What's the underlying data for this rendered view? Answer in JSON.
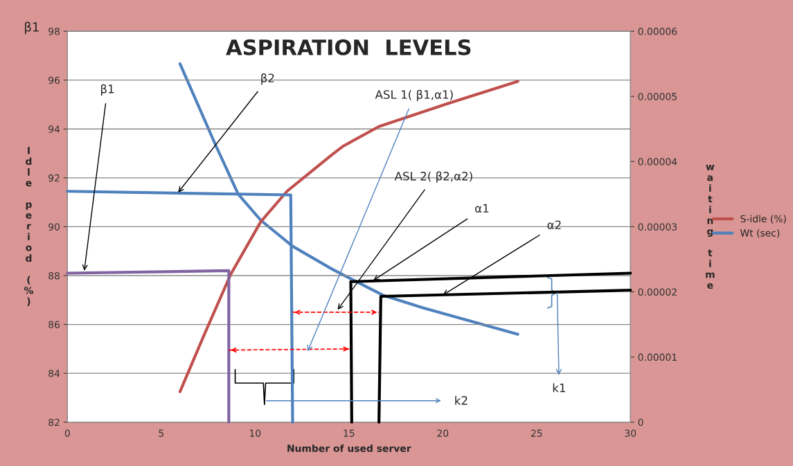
{
  "chart_data": {
    "type": "line",
    "title": "ASPIRATION  LEVELS",
    "xlabel": "Number of used server",
    "ylabel": "Idle period (%)",
    "y2label": "waiting time",
    "xlim": [
      0,
      30
    ],
    "xticks": [
      0,
      5,
      10,
      15,
      20,
      25,
      30
    ],
    "ylim": [
      82,
      98
    ],
    "yticks": [
      82,
      84,
      86,
      88,
      90,
      92,
      94,
      96,
      98
    ],
    "y2lim": [
      0,
      6e-05
    ],
    "y2ticks": [
      0,
      {
        "value": 1e-05,
        "label": "0.00001"
      },
      {
        "value": 2e-05,
        "label": "0.00002"
      },
      {
        "value": 3e-05,
        "label": "0.00003"
      },
      {
        "value": 4e-05,
        "label": "0.00004"
      },
      {
        "value": 5e-05,
        "label": "0.00005"
      },
      {
        "value": 6e-05,
        "label": "0.00006"
      }
    ],
    "grid": "y",
    "legend": "right",
    "series": [
      {
        "name": "S-idle (%)",
        "color": "#c0504d",
        "x": [
          6,
          7.3,
          8.7,
          10.3,
          11.7,
          14.1,
          14.7,
          16.6,
          20.3,
          24
        ],
        "values": [
          83.25,
          85.6,
          88.05,
          90.2,
          91.45,
          92.95,
          93.3,
          94.1,
          95.05,
          95.95
        ]
      },
      {
        "name": "Wt (sec)",
        "color": "#4f81bd",
        "axis": "y2",
        "x": [
          6,
          7.9,
          9.1,
          10.3,
          12,
          14.1,
          15.1,
          16.8,
          19,
          24
        ],
        "values": [
          5.5e-05,
          4.25e-05,
          3.5e-05,
          3.1e-05,
          2.7e-05,
          2.35e-05,
          2.2e-05,
          1.95e-05,
          1.75e-05,
          1.35e-05
        ]
      },
      {
        "color": "#8064a2",
        "x": [
          0,
          8.6,
          8.6
        ],
        "values": [
          88.1,
          88.2,
          82
        ]
      },
      {
        "color": "#4f81bd",
        "x": [
          0,
          11.9,
          12
        ],
        "values": [
          91.45,
          91.3,
          82
        ]
      },
      {
        "color": "#000000",
        "x": [
          15.15,
          15.1,
          30
        ],
        "values": [
          82,
          87.75,
          88.1
        ]
      },
      {
        "color": "#000000",
        "x": [
          16.6,
          16.7,
          30
        ],
        "values": [
          82,
          87.15,
          87.4
        ]
      },
      {
        "color": "#ff0000",
        "line_style": "dashed",
        "x": [
          12,
          16.6
        ],
        "values": [
          86.5,
          86.5
        ]
      },
      {
        "color": "#ff0000",
        "line_style": "dashed",
        "x": [
          8.6,
          15.1
        ],
        "values": [
          84.95,
          85.0
        ]
      }
    ],
    "annotations": [
      "β1",
      {
        "text": "β1",
        "x": 0.9,
        "y": 88.2
      },
      {
        "text": "β2",
        "x": 5.9,
        "y": 91.4
      },
      {
        "text": "ASL 1( β1,α1)",
        "x": 12.8,
        "y": 84.9
      },
      {
        "text": "ASL 2( β2,α2)",
        "x": 14.4,
        "y": 86.6
      },
      {
        "text": "α1",
        "x": 16.3,
        "y": 87.8
      },
      {
        "text": "α2",
        "x": 20.0,
        "y": 87.2
      },
      {
        "text": "k1",
        "x": 26.1,
        "y": 87.3
      },
      "k2"
    ]
  }
}
